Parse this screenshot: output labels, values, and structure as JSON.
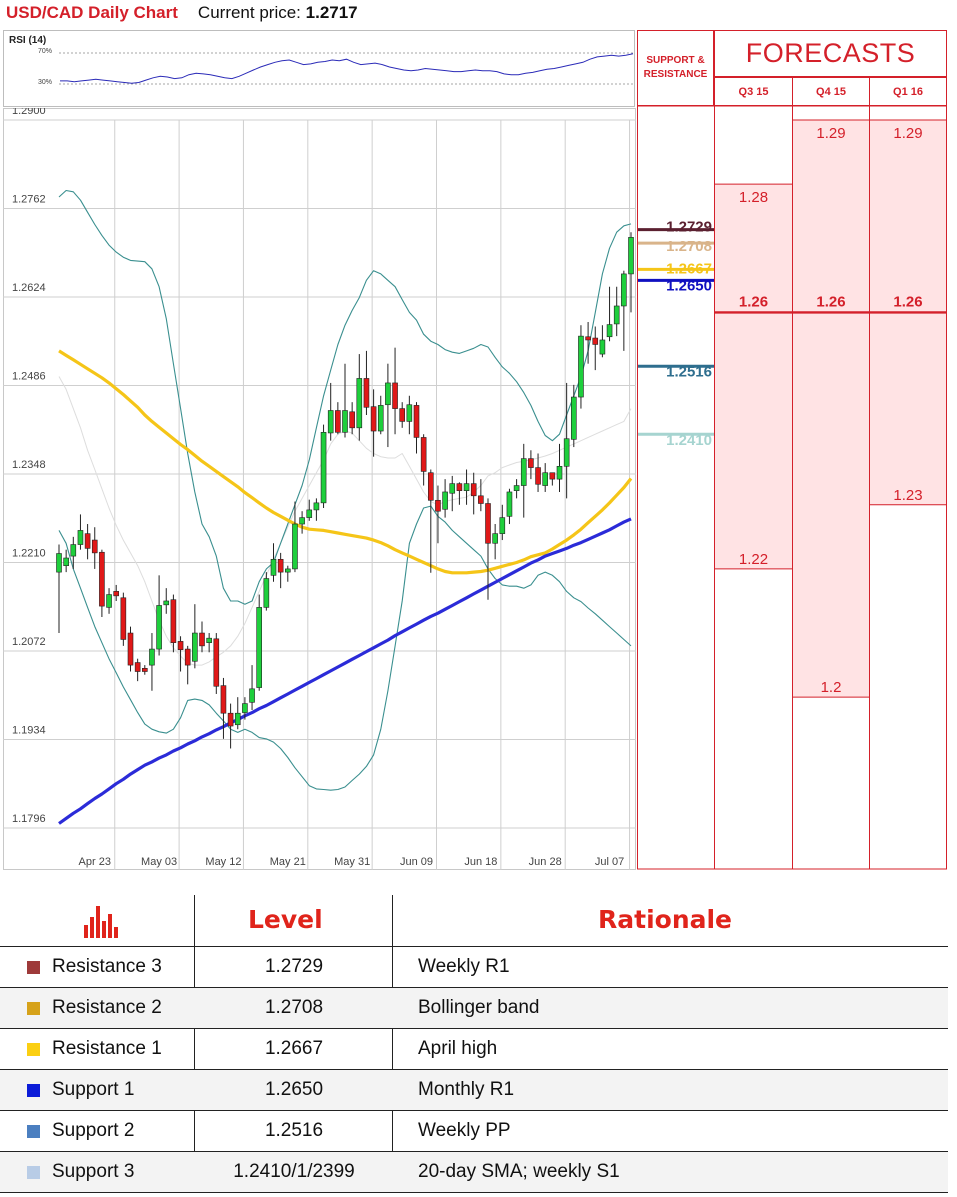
{
  "header": {
    "title": "USD/CAD Daily Chart",
    "price_label": "Current price:",
    "price": "1.2717"
  },
  "rsi": {
    "label": "RSI (14)",
    "level_high": "70%",
    "level_low": "30%"
  },
  "chart_data": {
    "type": "line",
    "title": "USD/CAD Daily Chart",
    "ylim": [
      1.1796,
      1.29
    ],
    "y_ticks": [
      "1.2900",
      "1.2762",
      "1.2624",
      "1.2486",
      "1.2348",
      "1.2210",
      "1.2072",
      "1.1934",
      "1.1796"
    ],
    "x_ticks": [
      "Apr 23",
      "May 03",
      "May 12",
      "May 21",
      "May 31",
      "Jun 09",
      "Jun 18",
      "Jun 28",
      "Jul 07"
    ],
    "candles": [
      [
        1.2195,
        1.2224,
        1.21,
        1.2238
      ],
      [
        1.2205,
        1.2217,
        1.2195,
        1.223
      ],
      [
        1.222,
        1.2238,
        1.22,
        1.225
      ],
      [
        1.2238,
        1.226,
        1.223,
        1.2285
      ],
      [
        1.2255,
        1.2232,
        1.2215,
        1.227
      ],
      [
        1.2245,
        1.2225,
        1.22,
        1.2265
      ],
      [
        1.2226,
        1.2142,
        1.2125,
        1.223
      ],
      [
        1.214,
        1.216,
        1.213,
        1.217
      ],
      [
        1.2165,
        1.2158,
        1.215,
        1.2175
      ],
      [
        1.2155,
        1.209,
        1.208,
        1.2163
      ],
      [
        1.21,
        1.205,
        1.204,
        1.211
      ],
      [
        1.2054,
        1.204,
        1.2025,
        1.206
      ],
      [
        1.2045,
        1.204,
        1.2035,
        1.205
      ],
      [
        1.205,
        1.2075,
        1.201,
        1.21
      ],
      [
        1.2075,
        1.2143,
        1.2065,
        1.219
      ],
      [
        1.2144,
        1.215,
        1.213,
        1.217
      ],
      [
        1.2152,
        1.2085,
        1.207,
        1.216
      ],
      [
        1.2087,
        1.2074,
        1.204,
        1.2095
      ],
      [
        1.2075,
        1.205,
        1.202,
        1.208
      ],
      [
        1.2056,
        1.21,
        1.2045,
        1.2145
      ],
      [
        1.21,
        1.208,
        1.207,
        1.2118
      ],
      [
        1.2085,
        1.2092,
        1.207,
        1.21
      ],
      [
        1.2091,
        1.2017,
        1.2005,
        1.21
      ],
      [
        1.2018,
        1.1975,
        1.1935,
        1.203
      ],
      [
        1.1975,
        1.1955,
        1.192,
        1.199
      ],
      [
        1.1957,
        1.1975,
        1.195,
        1.2
      ],
      [
        1.1976,
        1.199,
        1.1965,
        1.2
      ],
      [
        1.1992,
        1.2013,
        1.198,
        1.205
      ],
      [
        1.2015,
        1.214,
        1.201,
        1.216
      ],
      [
        1.214,
        1.2185,
        1.2135,
        1.2195
      ],
      [
        1.219,
        1.2215,
        1.218,
        1.224
      ],
      [
        1.2215,
        1.2195,
        1.217,
        1.2225
      ],
      [
        1.2195,
        1.22,
        1.218,
        1.2205
      ],
      [
        1.22,
        1.227,
        1.2195,
        1.2305
      ],
      [
        1.227,
        1.228,
        1.2255,
        1.229
      ],
      [
        1.228,
        1.2292,
        1.2275,
        1.2308
      ],
      [
        1.2292,
        1.2303,
        1.2275,
        1.231
      ],
      [
        1.2303,
        1.2413,
        1.2295,
        1.2425
      ],
      [
        1.2412,
        1.2447,
        1.24,
        1.249
      ],
      [
        1.2447,
        1.2413,
        1.241,
        1.246
      ],
      [
        1.2413,
        1.2447,
        1.2405,
        1.252
      ],
      [
        1.2445,
        1.242,
        1.241,
        1.246
      ],
      [
        1.242,
        1.2497,
        1.24,
        1.2535
      ],
      [
        1.2497,
        1.2452,
        1.244,
        1.254
      ],
      [
        1.2453,
        1.2415,
        1.2375,
        1.248
      ],
      [
        1.2415,
        1.2455,
        1.241,
        1.247
      ],
      [
        1.2456,
        1.249,
        1.239,
        1.252
      ],
      [
        1.249,
        1.245,
        1.241,
        1.2545
      ],
      [
        1.245,
        1.243,
        1.242,
        1.246
      ],
      [
        1.243,
        1.2456,
        1.241,
        1.247
      ],
      [
        1.2455,
        1.2405,
        1.238,
        1.246
      ],
      [
        1.2405,
        1.2352,
        1.233,
        1.241
      ],
      [
        1.235,
        1.2307,
        1.2194,
        1.2355
      ],
      [
        1.2307,
        1.229,
        1.224,
        1.233
      ],
      [
        1.2293,
        1.232,
        1.228,
        1.234
      ],
      [
        1.2318,
        1.2333,
        1.229,
        1.2345
      ],
      [
        1.2333,
        1.2322,
        1.23,
        1.2335
      ],
      [
        1.2322,
        1.2333,
        1.23,
        1.2355
      ],
      [
        1.2333,
        1.2314,
        1.2285,
        1.235
      ],
      [
        1.2314,
        1.2302,
        1.229,
        1.234
      ],
      [
        1.2302,
        1.224,
        1.2152,
        1.231
      ],
      [
        1.224,
        1.2255,
        1.2215,
        1.227
      ],
      [
        1.2255,
        1.228,
        1.2245,
        1.23
      ],
      [
        1.2282,
        1.232,
        1.227,
        1.2325
      ],
      [
        1.2322,
        1.233,
        1.231,
        1.234
      ],
      [
        1.233,
        1.2372,
        1.228,
        1.2395
      ],
      [
        1.2372,
        1.2358,
        1.234,
        1.2385
      ],
      [
        1.2358,
        1.2332,
        1.232,
        1.238
      ],
      [
        1.233,
        1.235,
        1.232,
        1.2365
      ],
      [
        1.235,
        1.234,
        1.233,
        1.235
      ],
      [
        1.234,
        1.236,
        1.232,
        1.2395
      ],
      [
        1.236,
        1.2403,
        1.231,
        1.249
      ],
      [
        1.2402,
        1.2468,
        1.239,
        1.2487
      ],
      [
        1.2468,
        1.2563,
        1.245,
        1.258
      ],
      [
        1.2562,
        1.2557,
        1.252,
        1.2585
      ],
      [
        1.256,
        1.255,
        1.251,
        1.2578
      ],
      [
        1.2535,
        1.2557,
        1.253,
        1.258
      ],
      [
        1.2562,
        1.2581,
        1.2555,
        1.264
      ],
      [
        1.2582,
        1.261,
        1.2563,
        1.264
      ],
      [
        1.261,
        1.266,
        1.254,
        1.2665
      ],
      [
        1.266,
        1.2717,
        1.26,
        1.2725
      ]
    ],
    "series": [
      {
        "name": "",
        "color": "#2b2bd8",
        "values": [
          1.1803,
          1.1811,
          1.1819,
          1.1826,
          1.1834,
          1.1842,
          1.1849,
          1.1857,
          1.1865,
          1.1872,
          1.188,
          1.1887,
          1.1894,
          1.1899,
          1.1905,
          1.191,
          1.1916,
          1.1921,
          1.1927,
          1.1932,
          1.1938,
          1.1943,
          1.1949,
          1.1954,
          1.196,
          1.1965,
          1.1971,
          1.1976,
          1.1982,
          1.1987,
          1.1993,
          1.1999,
          1.2005,
          1.2011,
          1.2017,
          1.2023,
          1.2029,
          1.2035,
          1.2041,
          1.2047,
          1.2053,
          1.2059,
          1.2065,
          1.2071,
          1.2077,
          1.2083,
          1.2089,
          1.2096,
          1.2102,
          1.2108,
          1.2114,
          1.212,
          1.2126,
          1.2131,
          1.2137,
          1.2143,
          1.2149,
          1.2155,
          1.2161,
          1.2167,
          1.2173,
          1.2179,
          1.2185,
          1.2191,
          1.2197,
          1.2203,
          1.2209,
          1.2214,
          1.222,
          1.2224,
          1.2228,
          1.2232,
          1.2237,
          1.2241,
          1.2246,
          1.2251,
          1.2256,
          1.2261,
          1.2267,
          1.2273,
          1.2278
        ]
      },
      {
        "name": "",
        "color": "#f5c518",
        "values": [
          1.254,
          1.2533,
          1.2526,
          1.2519,
          1.2512,
          1.2505,
          1.2498,
          1.249,
          1.2481,
          1.2472,
          1.2462,
          1.2452,
          1.244,
          1.243,
          1.2421,
          1.2412,
          1.2403,
          1.2394,
          1.2386,
          1.2377,
          1.2368,
          1.236,
          1.2352,
          1.2344,
          1.2336,
          1.2328,
          1.2319,
          1.2311,
          1.2303,
          1.2295,
          1.2288,
          1.2282,
          1.2276,
          1.227,
          1.2265,
          1.2262,
          1.2261,
          1.226,
          1.2258,
          1.2256,
          1.2254,
          1.2252,
          1.225,
          1.2248,
          1.2245,
          1.2241,
          1.2236,
          1.223,
          1.2225,
          1.222,
          1.2215,
          1.221,
          1.2205,
          1.22,
          1.2196,
          1.2194,
          1.2194,
          1.2194,
          1.2195,
          1.2196,
          1.2198,
          1.2201,
          1.2204,
          1.2207,
          1.221,
          1.2214,
          1.2219,
          1.2222,
          1.2225,
          1.2231,
          1.2238,
          1.2245,
          1.2253,
          1.2262,
          1.2272,
          1.2282,
          1.2292,
          1.2303,
          1.2315,
          1.2327,
          1.2341
        ]
      },
      {
        "name": "",
        "color": "#3a8f8f",
        "values": [
          1.278,
          1.279,
          1.2788,
          1.2775,
          1.2756,
          1.2737,
          1.272,
          1.2705,
          1.2694,
          1.2686,
          1.2681,
          1.268,
          1.2679,
          1.2668,
          1.264,
          1.259,
          1.252,
          1.245,
          1.238,
          1.232,
          1.227,
          1.225,
          1.222,
          1.217,
          1.215,
          1.215,
          1.2145,
          1.215,
          1.218,
          1.22,
          1.221,
          1.224,
          1.227,
          1.23,
          1.233,
          1.237,
          1.242,
          1.247,
          1.251,
          1.255,
          1.258,
          1.2603,
          1.2623,
          1.265,
          1.2665,
          1.266,
          1.265,
          1.264,
          1.262,
          1.26,
          1.2588,
          1.2566,
          1.2555,
          1.255,
          1.2542,
          1.2538,
          1.2536,
          1.254,
          1.2544,
          1.255,
          1.2546,
          1.253,
          1.2515,
          1.2505,
          1.2492,
          1.2475,
          1.2455,
          1.243,
          1.2408,
          1.24,
          1.241,
          1.244,
          1.247,
          1.25,
          1.254,
          1.26,
          1.266,
          1.27,
          1.2725,
          1.2735,
          1.2738
        ]
      },
      {
        "name": "",
        "color": "#3a8f8f",
        "values": [
          1.226,
          1.224,
          1.22,
          1.217,
          1.214,
          1.211,
          1.2085,
          1.206,
          1.2038,
          1.2016,
          1.1996,
          1.1976,
          1.1958,
          1.195,
          1.1946,
          1.1944,
          1.195,
          1.1968,
          1.1995,
          1.1997,
          1.1995,
          1.1988,
          1.1975,
          1.1963,
          1.195,
          1.1945,
          1.195,
          1.1945,
          1.1937,
          1.1935,
          1.193,
          1.192,
          1.1906,
          1.189,
          1.1876,
          1.1862,
          1.1857,
          1.1856,
          1.1855,
          1.1856,
          1.186,
          1.187,
          1.188,
          1.1892,
          1.191,
          1.195,
          1.201,
          1.208,
          1.215,
          1.224,
          1.227,
          1.2295,
          1.2298,
          1.2282,
          1.2273,
          1.226,
          1.225,
          1.224,
          1.223,
          1.222,
          1.22,
          1.2185,
          1.2175,
          1.2173,
          1.2173,
          1.217,
          1.2175,
          1.219,
          1.2195,
          1.219,
          1.218,
          1.2165,
          1.2155,
          1.2149,
          1.2139,
          1.213,
          1.212,
          1.211,
          1.21,
          1.209,
          1.208
        ]
      },
      {
        "name": "",
        "color": "#dddddd",
        "values": [
          1.25,
          1.248,
          1.245,
          1.242,
          1.2385,
          1.2355,
          1.2325,
          1.2295,
          1.2268,
          1.2245,
          1.2225,
          1.2205,
          1.218,
          1.215,
          1.212,
          1.2095,
          1.2077,
          1.2064,
          1.2053,
          1.205,
          1.205,
          1.2055,
          1.2063,
          1.207,
          1.208,
          1.2095,
          1.2115,
          1.214,
          1.2165,
          1.219,
          1.2215,
          1.224,
          1.2265,
          1.229,
          1.231,
          1.233,
          1.235,
          1.237,
          1.2395,
          1.241,
          1.2415,
          1.2412,
          1.24,
          1.2388,
          1.238,
          1.2375,
          1.2373,
          1.2373,
          1.238,
          1.236,
          1.234,
          1.232,
          1.2305,
          1.23,
          1.2305,
          1.2308,
          1.231,
          1.2312,
          1.232,
          1.233,
          1.2345,
          1.235,
          1.2358,
          1.2362,
          1.2366,
          1.2368,
          1.237,
          1.2373,
          1.2376,
          1.238,
          1.2385,
          1.239,
          1.2395,
          1.24,
          1.2405,
          1.241,
          1.2415,
          1.242,
          1.2425,
          1.243,
          1.245
        ]
      }
    ],
    "rsi_values": [
      34,
      34,
      33,
      34,
      35,
      36,
      35,
      34,
      33,
      32,
      31,
      32,
      35,
      38,
      40,
      39,
      37,
      38,
      42,
      44,
      43,
      42,
      40,
      38,
      37,
      40,
      44,
      48,
      52,
      55,
      58,
      60,
      61,
      58,
      55,
      56,
      58,
      59,
      61,
      60,
      62,
      58,
      55,
      56,
      57,
      55,
      52,
      50,
      48,
      47,
      48,
      50,
      49,
      48,
      47,
      46,
      46,
      47,
      48,
      47,
      47,
      46,
      43,
      42,
      42,
      44,
      45,
      47,
      49,
      50,
      52,
      54,
      56,
      58,
      62,
      65,
      66,
      67,
      66,
      67,
      69
    ],
    "levels": [
      {
        "name": "Resistance 3",
        "label": "1.2729",
        "value": 1.2729,
        "color": "#5b2030"
      },
      {
        "name": "Resistance 2",
        "label": "1.2708",
        "value": 1.2708,
        "color": "#d9b48a"
      },
      {
        "name": "Resistance 1",
        "label": "1.2667",
        "value": 1.2667,
        "color": "#f5c518"
      },
      {
        "name": "Support 1",
        "label": "1.2650",
        "value": 1.265,
        "color": "#1010c0"
      },
      {
        "name": "Support 2",
        "label": "1.2516",
        "value": 1.2516,
        "color": "#2e6e8e"
      },
      {
        "name": "Support 3",
        "label": "1.2410",
        "value": 1.241,
        "color": "#a6d4d0"
      }
    ]
  },
  "forecasts": {
    "sr_header": "SUPPORT & RESISTANCE",
    "title": "FORECASTS",
    "quarters": [
      {
        "label": "Q3 15",
        "high": "1.28",
        "mid": "1.26",
        "low": "1.22",
        "high_v": 1.28,
        "mid_v": 1.26,
        "low_v": 1.22
      },
      {
        "label": "Q4 15",
        "high": "1.29",
        "mid": "1.26",
        "low": "1.2",
        "high_v": 1.29,
        "mid_v": 1.26,
        "low_v": 1.2
      },
      {
        "label": "Q1 16",
        "high": "1.29",
        "mid": "1.26",
        "low": "1.23",
        "high_v": 1.29,
        "mid_v": 1.26,
        "low_v": 1.23
      }
    ],
    "color": "#d4202a",
    "fill": "#ffe3e4"
  },
  "table": {
    "header_level": "Level",
    "header_rationale": "Rationale",
    "icon": "bar-chart-icon",
    "rows": [
      {
        "name": "Resistance 3",
        "level": "1.2729",
        "rationale": "Weekly R1",
        "color": "#9e3a3a"
      },
      {
        "name": "Resistance 2",
        "level": "1.2708",
        "rationale": "Bollinger band",
        "color": "#d6a21a"
      },
      {
        "name": "Resistance 1",
        "level": "1.2667",
        "rationale": "April high",
        "color": "#fbcf12"
      },
      {
        "name": "Support 1",
        "level": "1.2650",
        "rationale": "Monthly R1",
        "color": "#0b1bd8"
      },
      {
        "name": "Support 2",
        "level": "1.2516",
        "rationale": "Weekly PP",
        "color": "#4b7fc0"
      },
      {
        "name": "Support 3",
        "level": "1.2410/1/2399",
        "rationale": "20-day SMA; weekly S1",
        "color": "#b8cce6"
      }
    ]
  }
}
